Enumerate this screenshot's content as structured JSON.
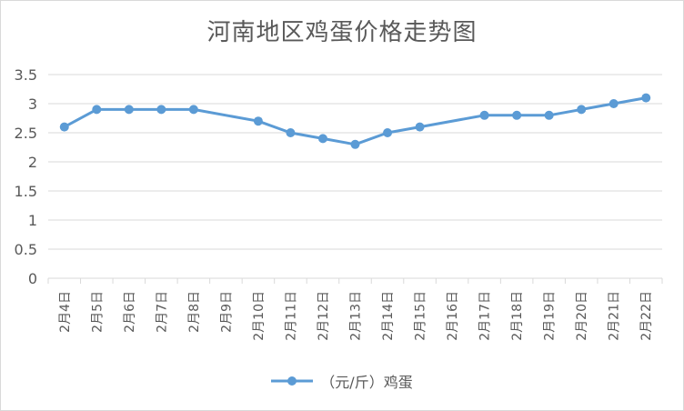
{
  "chart_data": {
    "type": "line",
    "title": "河南地区鸡蛋价格走势图",
    "categories": [
      "2月4日",
      "2月5日",
      "2月6日",
      "2月7日",
      "2月8日",
      "2月9日",
      "2月10日",
      "2月11日",
      "2月12日",
      "2月13日",
      "2月14日",
      "2月15日",
      "2月16日",
      "2月17日",
      "2月18日",
      "2月19日",
      "2月20日",
      "2月21日",
      "2月22日"
    ],
    "series": [
      {
        "name": "（元/斤）鸡蛋",
        "color": "#5b9bd5",
        "values": [
          2.6,
          2.9,
          2.9,
          2.9,
          2.9,
          null,
          2.7,
          2.5,
          2.4,
          2.3,
          2.5,
          2.6,
          null,
          2.8,
          2.8,
          2.8,
          2.9,
          3.0,
          3.1
        ]
      }
    ],
    "ylim": [
      0,
      3.5
    ],
    "yticks": [
      "0",
      "0.5",
      "1",
      "1.5",
      "2",
      "2.5",
      "3",
      "3.5"
    ],
    "grid": true,
    "legend_position": "bottom",
    "xlabel": "",
    "ylabel": ""
  }
}
